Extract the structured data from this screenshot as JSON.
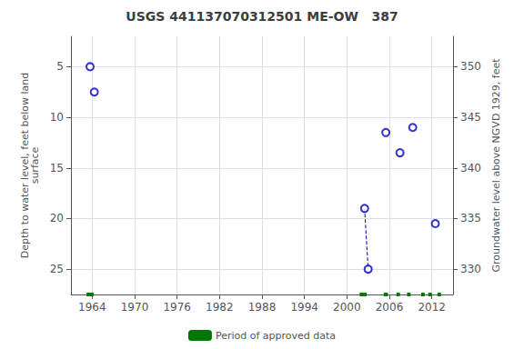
{
  "chart_data": {
    "type": "scatter",
    "title": "USGS 441137070312501 ME-OW   387",
    "ylabel": "Depth to water level, feet below land\nsurface",
    "y2label": "Groundwater level above NGVD 1929, feet",
    "series": [
      {
        "type": "scatter",
        "color": "#0000bb",
        "marker": "open_circle",
        "x": [
          1963.7,
          1964.3,
          2002.5,
          2003.0,
          2005.5,
          2007.5,
          2009.3,
          2012.5
        ],
        "values": [
          5.0,
          7.5,
          19.0,
          25.0,
          11.5,
          13.5,
          11.0,
          20.5
        ]
      },
      {
        "type": "line",
        "color": "#0000bb",
        "line_style": "dashed",
        "x": [
          2002.5,
          2003.0
        ],
        "values": [
          19.0,
          25.0
        ]
      },
      {
        "type": "segments",
        "name": "Period of approved data",
        "color": "#007700",
        "segments": [
          [
            1963.2,
            1964.2
          ],
          [
            2001.8,
            2002.8
          ],
          [
            2005.2,
            2005.8
          ],
          [
            2007.0,
            2007.5
          ],
          [
            2008.5,
            2009.0
          ],
          [
            2010.5,
            2011.0
          ],
          [
            2011.5,
            2012.0
          ],
          [
            2012.8,
            2013.3
          ]
        ]
      }
    ],
    "xlim": [
      1961,
      2015
    ],
    "xticks": [
      1964,
      1970,
      1976,
      1982,
      1988,
      1994,
      2000,
      2006,
      2012
    ],
    "ylim": [
      27.5,
      2.0
    ],
    "yticks": [
      5,
      10,
      15,
      20,
      25
    ],
    "y2lim": [
      327.5,
      353
    ],
    "y2ticks": [
      350,
      345,
      340,
      335,
      330
    ],
    "grid": true,
    "legend": "bottom"
  }
}
